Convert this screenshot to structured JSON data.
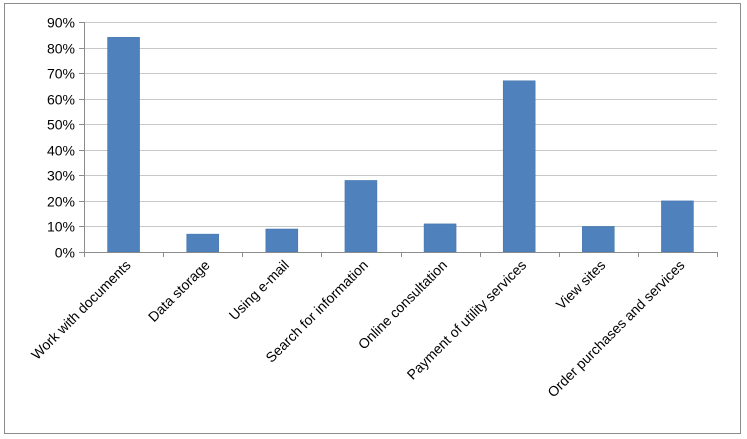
{
  "chart_data": {
    "type": "bar",
    "title": "",
    "xlabel": "",
    "ylabel": "",
    "categories": [
      "Work with documents",
      "Data storage",
      "Using e-mail",
      "Search for information",
      "Online consultation",
      "Payment of utility services",
      "View sites",
      "Order purchases and services"
    ],
    "values": [
      84,
      7,
      9,
      28,
      11,
      67,
      10,
      20
    ],
    "value_format": "percent",
    "ylim": [
      0,
      90
    ],
    "yticks": [
      "0%",
      "10%",
      "20%",
      "30%",
      "40%",
      "50%",
      "60%",
      "70%",
      "80%",
      "90%"
    ],
    "grid": true,
    "legend": "none",
    "colors": {
      "bar": "#4f81bd",
      "bar_edge": "#3f6fa8",
      "grid": "#c8c8c8",
      "axis": "#8c8c8c"
    }
  }
}
